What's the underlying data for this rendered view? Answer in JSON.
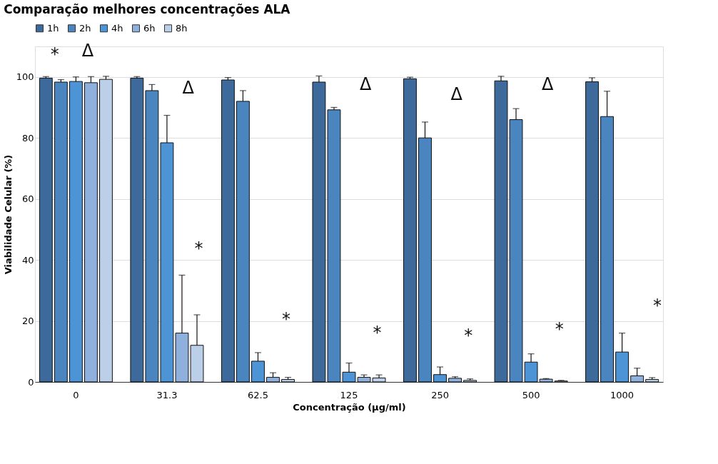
{
  "chart_data": {
    "type": "bar",
    "title": "Comparação melhores concentrações ALA",
    "xlabel": "Concentração (µg/ml)",
    "ylabel": "Viabilidade Celular (%)",
    "categories": [
      "0",
      "31.3",
      "62.5",
      "125",
      "250",
      "500",
      "1000"
    ],
    "series": [
      {
        "name": "1h",
        "color": "#3d6a9a",
        "values": [
          99.6,
          99.6,
          99,
          98.3,
          99.4,
          98.7,
          98.4
        ],
        "errors": [
          0.5,
          0.5,
          0.8,
          2,
          0.5,
          1.5,
          1.3
        ]
      },
      {
        "name": "2h",
        "color": "#4a85c0",
        "values": [
          98.3,
          95.5,
          92,
          89.2,
          80,
          86,
          87
        ],
        "errors": [
          0.8,
          2,
          3.5,
          0.8,
          5.2,
          3.6,
          8.3
        ]
      },
      {
        "name": "4h",
        "color": "#4d94d6",
        "values": [
          98.5,
          78.4,
          6.8,
          3.2,
          2.4,
          6.5,
          9.8
        ],
        "errors": [
          1.5,
          9,
          2.8,
          3,
          2.5,
          2.7,
          6.2
        ]
      },
      {
        "name": "6h",
        "color": "#8fb0dc",
        "values": [
          98.1,
          16,
          1.5,
          1.5,
          1.2,
          0.9,
          2
        ],
        "errors": [
          2,
          19,
          1.5,
          0.8,
          0.5,
          0.2,
          2.5
        ]
      },
      {
        "name": "8h",
        "color": "#bccfe8",
        "values": [
          99.2,
          12,
          0.8,
          1.3,
          0.5,
          0.3,
          0.8
        ],
        "errors": [
          1,
          10,
          0.7,
          1,
          0.5,
          0.2,
          0.6
        ]
      }
    ],
    "ylim": [
      0,
      110
    ],
    "yticks": [
      0,
      20,
      40,
      60,
      80,
      100
    ],
    "grid": "y",
    "legend": "top",
    "annotations": [
      "*",
      "Δ",
      "Δ",
      "*",
      "*",
      "Δ",
      "*",
      "Δ",
      "*",
      "Δ",
      "*",
      "*"
    ]
  }
}
